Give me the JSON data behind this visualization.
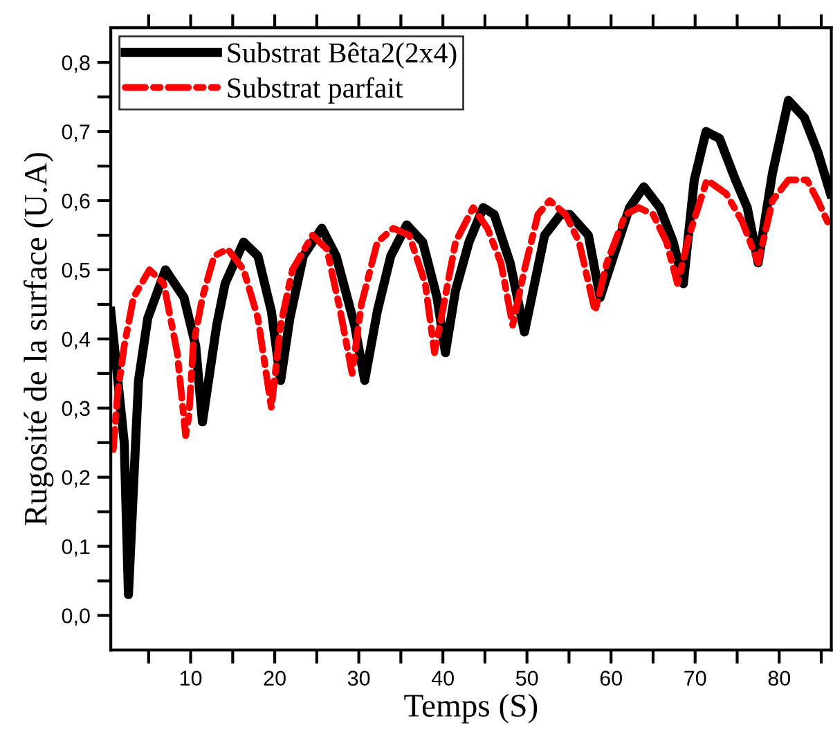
{
  "chart_data": {
    "type": "line",
    "xlabel": "Temps (S)",
    "ylabel": "Rugosité de la surface (U.A)",
    "xlim": [
      0.5,
      86.2
    ],
    "ylim": [
      -0.05,
      0.85
    ],
    "xticks": [
      {
        "value": 5,
        "label": null
      },
      10,
      {
        "value": 15,
        "label": null
      },
      20,
      {
        "value": 25,
        "label": null
      },
      30,
      {
        "value": 35,
        "label": null
      },
      40,
      {
        "value": 45,
        "label": null
      },
      50,
      {
        "value": 55,
        "label": null
      },
      60,
      {
        "value": 65,
        "label": null
      },
      70,
      {
        "value": 75,
        "label": null
      },
      80,
      {
        "value": 85,
        "label": null
      }
    ],
    "yticks": [
      {
        "value": 0.0,
        "label": "0,0"
      },
      {
        "value": 0.05,
        "label": null
      },
      {
        "value": 0.1,
        "label": "0,1"
      },
      {
        "value": 0.15,
        "label": null
      },
      {
        "value": 0.2,
        "label": "0,2"
      },
      {
        "value": 0.25,
        "label": null
      },
      {
        "value": 0.3,
        "label": "0,3"
      },
      {
        "value": 0.35,
        "label": null
      },
      {
        "value": 0.4,
        "label": "0,4"
      },
      {
        "value": 0.45,
        "label": null
      },
      {
        "value": 0.5,
        "label": "0,5"
      },
      {
        "value": 0.55,
        "label": null
      },
      {
        "value": 0.6,
        "label": "0,6"
      },
      {
        "value": 0.65,
        "label": null
      },
      {
        "value": 0.7,
        "label": "0,7"
      },
      {
        "value": 0.75,
        "label": null
      },
      {
        "value": 0.8,
        "label": "0,8"
      }
    ],
    "grid": false,
    "legend": "top left",
    "marker": "none",
    "series": [
      {
        "name": "Substrat Bêta2(2x4)",
        "color": "#000000",
        "line_style": "solid",
        "x": [
          0.5,
          2.1,
          2.6,
          3.8,
          4.9,
          7.0,
          9.2,
          10.6,
          11.4,
          13.1,
          14.1,
          16.3,
          18.0,
          19.6,
          20.7,
          21.8,
          23.4,
          25.6,
          27.3,
          29.5,
          30.7,
          32.2,
          33.8,
          35.7,
          37.6,
          39.3,
          40.3,
          41.5,
          43.1,
          44.8,
          46.1,
          48.0,
          49.7,
          52.1,
          54.0,
          55.1,
          57.3,
          58.7,
          60.3,
          62.2,
          63.9,
          65.8,
          67.4,
          68.6,
          69.9,
          71.3,
          72.9,
          74.8,
          76.2,
          77.5,
          79.2,
          81.1,
          83.0,
          84.6,
          86.1
        ],
        "values": [
          0.44,
          0.25,
          0.03,
          0.34,
          0.43,
          0.5,
          0.46,
          0.39,
          0.28,
          0.42,
          0.48,
          0.54,
          0.52,
          0.44,
          0.34,
          0.43,
          0.52,
          0.56,
          0.52,
          0.42,
          0.34,
          0.44,
          0.52,
          0.565,
          0.54,
          0.46,
          0.38,
          0.47,
          0.54,
          0.59,
          0.58,
          0.51,
          0.41,
          0.55,
          0.58,
          0.58,
          0.55,
          0.46,
          0.52,
          0.59,
          0.62,
          0.59,
          0.54,
          0.48,
          0.63,
          0.7,
          0.69,
          0.63,
          0.59,
          0.51,
          0.64,
          0.745,
          0.72,
          0.67,
          0.61
        ]
      },
      {
        "name": "Substrat parfait",
        "color": "#ff0000",
        "line_style": "dashdot",
        "x": [
          0.8,
          1.3,
          2.1,
          3.2,
          5.1,
          6.8,
          8.4,
          9.4,
          9.8,
          10.3,
          11.4,
          12.8,
          14.4,
          16.3,
          18.0,
          19.6,
          20.7,
          22.1,
          24.5,
          26.2,
          27.8,
          29.2,
          30.3,
          32.2,
          34.1,
          36.0,
          37.9,
          39.0,
          39.8,
          41.5,
          43.6,
          45.3,
          46.9,
          48.3,
          49.7,
          51.3,
          52.7,
          54.6,
          56.2,
          58.1,
          59.5,
          61.7,
          63.3,
          65.0,
          66.6,
          67.9,
          69.3,
          71.4,
          73.7,
          75.6,
          77.5,
          79.2,
          81.1,
          83.3,
          84.6,
          86.1
        ],
        "values": [
          0.24,
          0.32,
          0.39,
          0.46,
          0.5,
          0.48,
          0.38,
          0.26,
          0.29,
          0.39,
          0.46,
          0.52,
          0.53,
          0.5,
          0.43,
          0.3,
          0.42,
          0.5,
          0.55,
          0.53,
          0.44,
          0.35,
          0.45,
          0.54,
          0.56,
          0.55,
          0.48,
          0.38,
          0.43,
          0.54,
          0.59,
          0.56,
          0.51,
          0.42,
          0.5,
          0.58,
          0.6,
          0.58,
          0.54,
          0.44,
          0.51,
          0.58,
          0.59,
          0.58,
          0.54,
          0.48,
          0.55,
          0.63,
          0.61,
          0.57,
          0.51,
          0.6,
          0.63,
          0.63,
          0.6,
          0.56
        ]
      }
    ]
  }
}
